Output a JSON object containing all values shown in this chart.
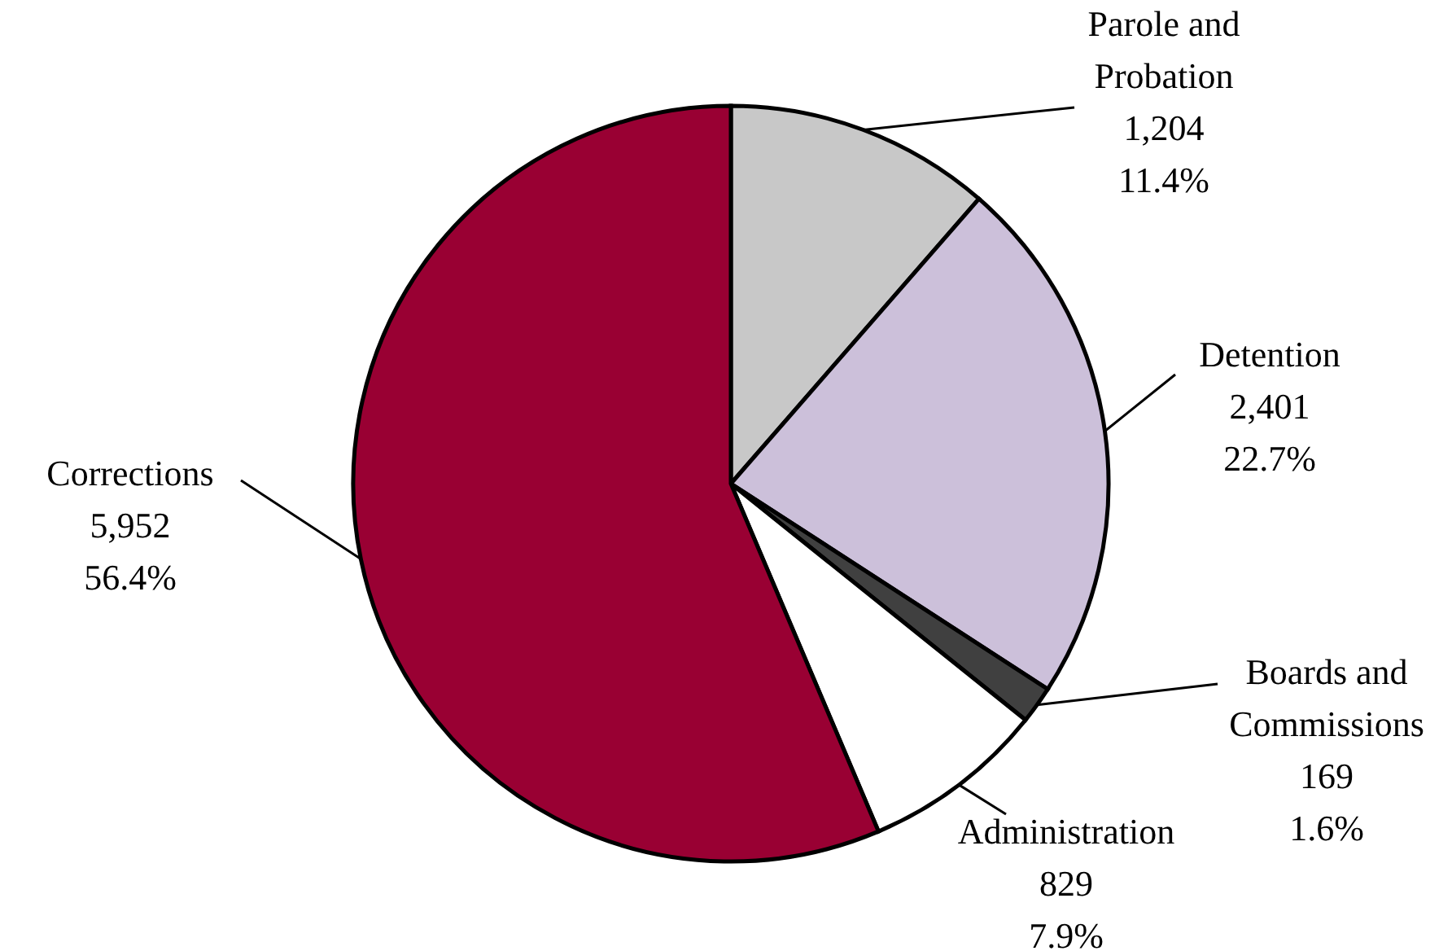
{
  "chart_data": {
    "type": "pie",
    "categories": [
      "Parole and Probation",
      "Detention",
      "Boards and Commissions",
      "Administration",
      "Corrections"
    ],
    "values": [
      1204,
      2401,
      169,
      829,
      5952
    ],
    "value_labels": [
      "1,204 11.4%",
      "2,401 22.7%",
      "169 1.6%",
      "829 7.9%",
      "5,952 56.4%"
    ],
    "colors": [
      "#c8c8c8",
      "#ccc0da",
      "#404040",
      "#ffffff",
      "#990033"
    ],
    "legend": false
  }
}
